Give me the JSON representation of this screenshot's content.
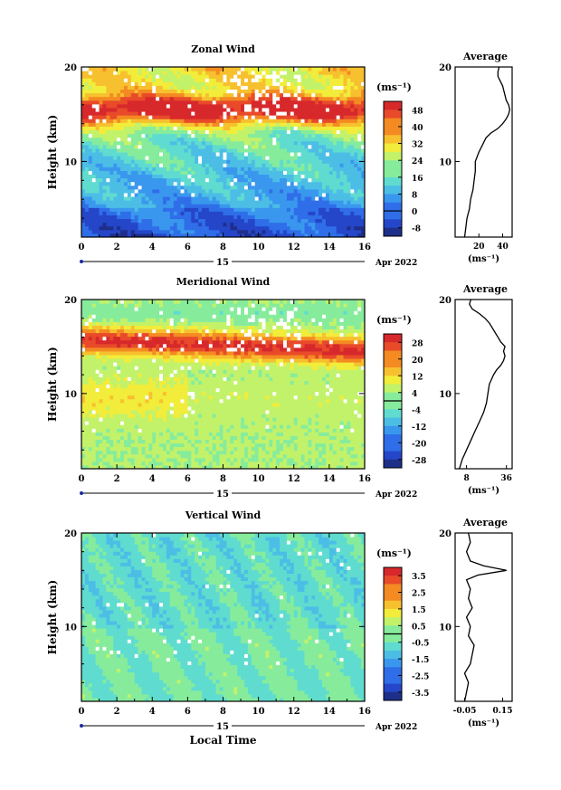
{
  "chart_data": [
    {
      "type": "heatmap",
      "title": "Zonal Wind",
      "ylabel": "Height (km)",
      "xlim": [
        0,
        16
      ],
      "ylim": [
        2,
        20
      ],
      "x_ticks": [
        "0",
        "2",
        "4",
        "6",
        "8",
        "10",
        "12",
        "14",
        "16"
      ],
      "y_ticks": [
        "10",
        "20"
      ],
      "date_day": "15",
      "date_month": "Apr 2022",
      "colorbar": {
        "unit": "(ms⁻¹)",
        "ticks": [
          "48",
          "40",
          "32",
          "24",
          "16",
          "8",
          "0",
          "-8"
        ],
        "range": [
          -12,
          52
        ]
      },
      "average": {
        "title": "Average",
        "xlabel": "(ms⁻¹)",
        "x_ticks": [
          "20",
          "40"
        ],
        "y_ticks": [
          "10",
          "20"
        ],
        "xlim": [
          0,
          48
        ],
        "profile": [
          [
            2,
            8
          ],
          [
            3,
            9
          ],
          [
            4,
            10
          ],
          [
            5,
            12
          ],
          [
            6,
            13
          ],
          [
            7,
            15
          ],
          [
            8,
            16
          ],
          [
            9,
            17
          ],
          [
            10,
            17
          ],
          [
            11,
            20
          ],
          [
            12,
            24
          ],
          [
            12.5,
            26
          ],
          [
            13,
            30
          ],
          [
            13.5,
            36
          ],
          [
            14,
            40
          ],
          [
            14.5,
            43
          ],
          [
            15,
            45
          ],
          [
            15.5,
            46
          ],
          [
            16,
            45
          ],
          [
            16.5,
            43
          ],
          [
            17,
            42
          ],
          [
            17.5,
            41
          ],
          [
            18,
            40
          ],
          [
            18.5,
            38
          ],
          [
            19,
            36
          ],
          [
            19.5,
            36
          ],
          [
            20,
            37
          ]
        ]
      }
    },
    {
      "type": "heatmap",
      "title": "Meridional Wind",
      "ylabel": "Height (km)",
      "xlim": [
        0,
        16
      ],
      "ylim": [
        2,
        20
      ],
      "x_ticks": [
        "0",
        "2",
        "4",
        "6",
        "8",
        "10",
        "12",
        "14",
        "16"
      ],
      "y_ticks": [
        "10",
        "20"
      ],
      "date_day": "15",
      "date_month": "Apr 2022",
      "colorbar": {
        "unit": "(ms⁻¹)",
        "ticks": [
          "28",
          "20",
          "12",
          "4",
          "-4",
          "-12",
          "-20",
          "-28"
        ],
        "range": [
          -32,
          32
        ]
      },
      "average": {
        "title": "Average",
        "xlabel": "(ms⁻¹)",
        "x_ticks": [
          "8",
          "36"
        ],
        "y_ticks": [
          "10",
          "20"
        ],
        "xlim": [
          0,
          40
        ],
        "profile": [
          [
            2,
            3
          ],
          [
            3,
            5
          ],
          [
            4,
            8
          ],
          [
            5,
            11
          ],
          [
            6,
            14
          ],
          [
            7,
            17
          ],
          [
            8,
            20
          ],
          [
            9,
            22
          ],
          [
            10,
            23
          ],
          [
            11,
            24
          ],
          [
            12,
            27
          ],
          [
            12.5,
            29
          ],
          [
            13,
            32
          ],
          [
            13.5,
            34
          ],
          [
            14,
            35
          ],
          [
            14.5,
            34
          ],
          [
            15,
            35
          ],
          [
            15.5,
            32
          ],
          [
            16,
            30
          ],
          [
            16.5,
            28
          ],
          [
            17,
            26
          ],
          [
            17.5,
            24
          ],
          [
            18,
            21
          ],
          [
            18.5,
            17
          ],
          [
            19,
            12
          ],
          [
            19.5,
            10
          ],
          [
            20,
            11
          ]
        ]
      }
    },
    {
      "type": "heatmap",
      "title": "Vertical Wind",
      "ylabel": "Height (km)",
      "xlabel": "Local Time",
      "xlim": [
        0,
        16
      ],
      "ylim": [
        2,
        20
      ],
      "x_ticks": [
        "0",
        "2",
        "4",
        "6",
        "8",
        "10",
        "12",
        "14",
        "16"
      ],
      "y_ticks": [
        "10",
        "20"
      ],
      "date_day": "15",
      "date_month": "Apr 2022",
      "colorbar": {
        "unit": "(ms⁻¹)",
        "ticks": [
          "3.5",
          "2.5",
          "1.5",
          "0.5",
          "-0.5",
          "-1.5",
          "-2.5",
          "-3.5"
        ],
        "range": [
          -4,
          4
        ]
      },
      "average": {
        "title": "Average",
        "xlabel": "(ms⁻¹)",
        "x_ticks": [
          "-0.05",
          "0.15"
        ],
        "y_ticks": [
          "10",
          "20"
        ],
        "xlim": [
          -0.1,
          0.2
        ],
        "profile": [
          [
            2,
            -0.05
          ],
          [
            3,
            -0.04
          ],
          [
            4,
            -0.03
          ],
          [
            5,
            -0.05
          ],
          [
            6,
            -0.02
          ],
          [
            7,
            -0.01
          ],
          [
            8,
            0.0
          ],
          [
            9,
            -0.03
          ],
          [
            10,
            -0.02
          ],
          [
            11,
            -0.04
          ],
          [
            12,
            -0.01
          ],
          [
            13,
            -0.03
          ],
          [
            14,
            -0.02
          ],
          [
            15,
            -0.04
          ],
          [
            15.5,
            0.02
          ],
          [
            16,
            0.17
          ],
          [
            16.5,
            0.05
          ],
          [
            17,
            -0.02
          ],
          [
            18,
            -0.04
          ],
          [
            19,
            -0.02
          ],
          [
            20,
            -0.03
          ]
        ]
      }
    }
  ]
}
